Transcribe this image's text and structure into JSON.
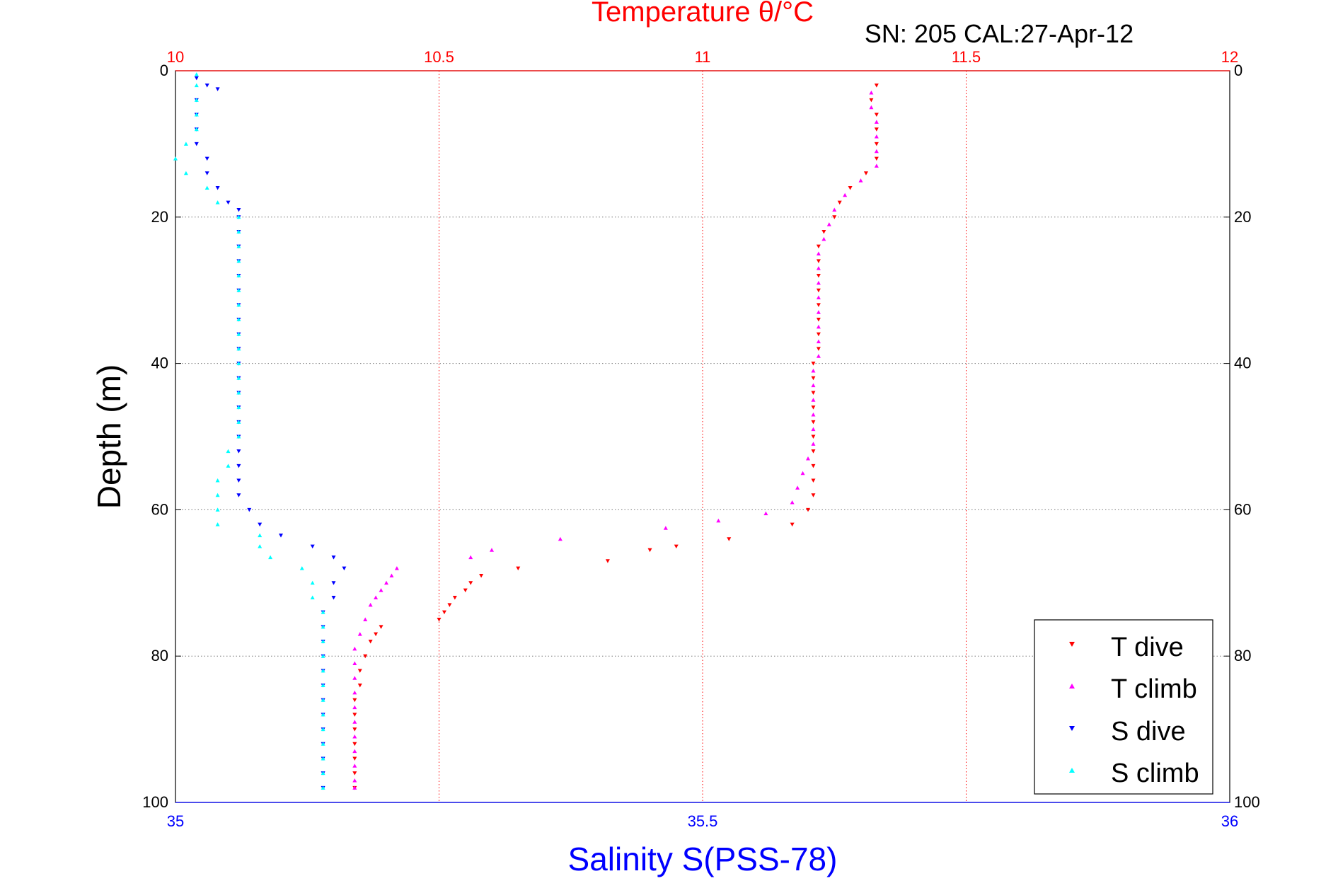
{
  "chart_data": {
    "type": "scatter",
    "title": "Temperature θ/°C",
    "subtitle": "SN: 205  CAL:27-Apr-12",
    "xlabel": "Salinity S(PSS-78)",
    "ylabel": "Depth (m)",
    "top_axis": {
      "label": "Temperature θ/°C",
      "range": [
        10,
        12
      ],
      "ticks": [
        "10",
        "10.5",
        "11",
        "11.5",
        "12"
      ],
      "color": "#ff0000"
    },
    "bottom_axis": {
      "label": "Salinity S(PSS-78)",
      "range": [
        35,
        36
      ],
      "ticks": [
        "35",
        "35.5",
        "36"
      ],
      "color": "#0000ff"
    },
    "y_axis": {
      "range": [
        0,
        100
      ],
      "reversed": true,
      "ticks": [
        "0",
        "20",
        "40",
        "60",
        "80",
        "100"
      ]
    },
    "grid": true,
    "legend_position": "bottom-right",
    "series": [
      {
        "name": "T dive",
        "axis": "temperature",
        "color": "#ff0000",
        "marker": "triangle-down",
        "points": [
          [
            11.33,
            2
          ],
          [
            11.32,
            4
          ],
          [
            11.33,
            6
          ],
          [
            11.33,
            8
          ],
          [
            11.33,
            10
          ],
          [
            11.33,
            12
          ],
          [
            11.31,
            14
          ],
          [
            11.28,
            16
          ],
          [
            11.26,
            18
          ],
          [
            11.25,
            20
          ],
          [
            11.23,
            22
          ],
          [
            11.22,
            24
          ],
          [
            11.22,
            26
          ],
          [
            11.22,
            28
          ],
          [
            11.22,
            30
          ],
          [
            11.22,
            32
          ],
          [
            11.22,
            34
          ],
          [
            11.22,
            36
          ],
          [
            11.22,
            38
          ],
          [
            11.21,
            40
          ],
          [
            11.21,
            42
          ],
          [
            11.21,
            44
          ],
          [
            11.21,
            46
          ],
          [
            11.21,
            48
          ],
          [
            11.21,
            50
          ],
          [
            11.21,
            52
          ],
          [
            11.21,
            54
          ],
          [
            11.21,
            56
          ],
          [
            11.21,
            58
          ],
          [
            11.2,
            60
          ],
          [
            11.17,
            62
          ],
          [
            11.05,
            64
          ],
          [
            10.95,
            65
          ],
          [
            10.9,
            65.5
          ],
          [
            10.82,
            67
          ],
          [
            10.65,
            68
          ],
          [
            10.58,
            69
          ],
          [
            10.56,
            70
          ],
          [
            10.55,
            71
          ],
          [
            10.53,
            72
          ],
          [
            10.52,
            73
          ],
          [
            10.51,
            74
          ],
          [
            10.5,
            75
          ],
          [
            10.39,
            76
          ],
          [
            10.38,
            77
          ],
          [
            10.37,
            78
          ],
          [
            10.36,
            80
          ],
          [
            10.35,
            82
          ],
          [
            10.35,
            84
          ],
          [
            10.34,
            86
          ],
          [
            10.34,
            88
          ],
          [
            10.34,
            90
          ],
          [
            10.34,
            92
          ],
          [
            10.34,
            94
          ],
          [
            10.34,
            96
          ],
          [
            10.34,
            98
          ]
        ]
      },
      {
        "name": "T climb",
        "axis": "temperature",
        "color": "#ff00ff",
        "marker": "triangle-up",
        "points": [
          [
            11.32,
            3
          ],
          [
            11.32,
            5
          ],
          [
            11.33,
            7
          ],
          [
            11.33,
            9
          ],
          [
            11.33,
            11
          ],
          [
            11.33,
            13
          ],
          [
            11.3,
            15
          ],
          [
            11.27,
            17
          ],
          [
            11.25,
            19
          ],
          [
            11.24,
            21
          ],
          [
            11.23,
            23
          ],
          [
            11.22,
            25
          ],
          [
            11.22,
            27
          ],
          [
            11.22,
            29
          ],
          [
            11.22,
            31
          ],
          [
            11.22,
            33
          ],
          [
            11.22,
            35
          ],
          [
            11.22,
            37
          ],
          [
            11.22,
            39
          ],
          [
            11.21,
            41
          ],
          [
            11.21,
            43
          ],
          [
            11.21,
            45
          ],
          [
            11.21,
            47
          ],
          [
            11.21,
            49
          ],
          [
            11.21,
            51
          ],
          [
            11.2,
            53
          ],
          [
            11.19,
            55
          ],
          [
            11.18,
            57
          ],
          [
            11.17,
            59
          ],
          [
            11.12,
            60.5
          ],
          [
            11.03,
            61.5
          ],
          [
            10.93,
            62.5
          ],
          [
            10.73,
            64
          ],
          [
            10.6,
            65.5
          ],
          [
            10.56,
            66.5
          ],
          [
            10.42,
            68
          ],
          [
            10.41,
            69
          ],
          [
            10.4,
            70
          ],
          [
            10.39,
            71
          ],
          [
            10.38,
            72
          ],
          [
            10.37,
            73
          ],
          [
            10.36,
            75
          ],
          [
            10.35,
            77
          ],
          [
            10.34,
            79
          ],
          [
            10.34,
            81
          ],
          [
            10.34,
            83
          ],
          [
            10.34,
            85
          ],
          [
            10.34,
            87
          ],
          [
            10.34,
            89
          ],
          [
            10.34,
            91
          ],
          [
            10.34,
            93
          ],
          [
            10.34,
            95
          ],
          [
            10.34,
            97
          ],
          [
            10.34,
            98
          ]
        ]
      },
      {
        "name": "S dive",
        "axis": "salinity",
        "color": "#0000ff",
        "marker": "triangle-down",
        "points": [
          [
            35.02,
            1
          ],
          [
            35.03,
            2
          ],
          [
            35.04,
            2.5
          ],
          [
            35.02,
            4
          ],
          [
            35.02,
            6
          ],
          [
            35.02,
            8
          ],
          [
            35.02,
            10
          ],
          [
            35.03,
            12
          ],
          [
            35.03,
            14
          ],
          [
            35.04,
            16
          ],
          [
            35.05,
            18
          ],
          [
            35.06,
            19
          ],
          [
            35.06,
            20
          ],
          [
            35.06,
            22
          ],
          [
            35.06,
            24
          ],
          [
            35.06,
            26
          ],
          [
            35.06,
            28
          ],
          [
            35.06,
            30
          ],
          [
            35.06,
            32
          ],
          [
            35.06,
            34
          ],
          [
            35.06,
            36
          ],
          [
            35.06,
            38
          ],
          [
            35.06,
            40
          ],
          [
            35.06,
            42
          ],
          [
            35.06,
            44
          ],
          [
            35.06,
            46
          ],
          [
            35.06,
            48
          ],
          [
            35.06,
            50
          ],
          [
            35.06,
            52
          ],
          [
            35.06,
            54
          ],
          [
            35.06,
            56
          ],
          [
            35.06,
            58
          ],
          [
            35.07,
            60
          ],
          [
            35.08,
            62
          ],
          [
            35.1,
            63.5
          ],
          [
            35.13,
            65
          ],
          [
            35.15,
            66.5
          ],
          [
            35.16,
            68
          ],
          [
            35.15,
            70
          ],
          [
            35.15,
            72
          ],
          [
            35.14,
            74
          ],
          [
            35.14,
            76
          ],
          [
            35.14,
            78
          ],
          [
            35.14,
            80
          ],
          [
            35.14,
            82
          ],
          [
            35.14,
            84
          ],
          [
            35.14,
            86
          ],
          [
            35.14,
            88
          ],
          [
            35.14,
            90
          ],
          [
            35.14,
            92
          ],
          [
            35.14,
            94
          ],
          [
            35.14,
            96
          ],
          [
            35.14,
            98
          ]
        ]
      },
      {
        "name": "S climb",
        "axis": "salinity",
        "color": "#00ffff",
        "marker": "triangle-up",
        "points": [
          [
            35.02,
            0.5
          ],
          [
            35.02,
            2
          ],
          [
            35.02,
            4
          ],
          [
            35.02,
            6
          ],
          [
            35.02,
            8
          ],
          [
            35.01,
            10
          ],
          [
            35.0,
            12
          ],
          [
            35.01,
            14
          ],
          [
            35.03,
            16
          ],
          [
            35.04,
            18
          ],
          [
            35.06,
            20
          ],
          [
            35.06,
            22
          ],
          [
            35.06,
            24
          ],
          [
            35.06,
            26
          ],
          [
            35.06,
            28
          ],
          [
            35.06,
            30
          ],
          [
            35.06,
            32
          ],
          [
            35.06,
            34
          ],
          [
            35.06,
            36
          ],
          [
            35.06,
            38
          ],
          [
            35.06,
            40
          ],
          [
            35.06,
            42
          ],
          [
            35.06,
            44
          ],
          [
            35.06,
            46
          ],
          [
            35.06,
            48
          ],
          [
            35.06,
            50
          ],
          [
            35.05,
            52
          ],
          [
            35.05,
            54
          ],
          [
            35.04,
            56
          ],
          [
            35.04,
            58
          ],
          [
            35.04,
            60
          ],
          [
            35.04,
            62
          ],
          [
            35.08,
            63.5
          ],
          [
            35.08,
            65
          ],
          [
            35.09,
            66.5
          ],
          [
            35.12,
            68
          ],
          [
            35.13,
            70
          ],
          [
            35.13,
            72
          ],
          [
            35.14,
            74
          ],
          [
            35.14,
            76
          ],
          [
            35.14,
            78
          ],
          [
            35.14,
            80
          ],
          [
            35.14,
            82
          ],
          [
            35.14,
            84
          ],
          [
            35.14,
            86
          ],
          [
            35.14,
            88
          ],
          [
            35.14,
            90
          ],
          [
            35.14,
            92
          ],
          [
            35.14,
            94
          ],
          [
            35.14,
            96
          ],
          [
            35.14,
            98
          ]
        ]
      }
    ]
  },
  "legend": {
    "items": [
      {
        "label": "T dive",
        "color": "#ff0000",
        "marker": "triangle-down"
      },
      {
        "label": "T climb",
        "color": "#ff00ff",
        "marker": "triangle-up"
      },
      {
        "label": "S dive",
        "color": "#0000ff",
        "marker": "triangle-down"
      },
      {
        "label": "S climb",
        "color": "#00ffff",
        "marker": "triangle-up"
      }
    ]
  }
}
